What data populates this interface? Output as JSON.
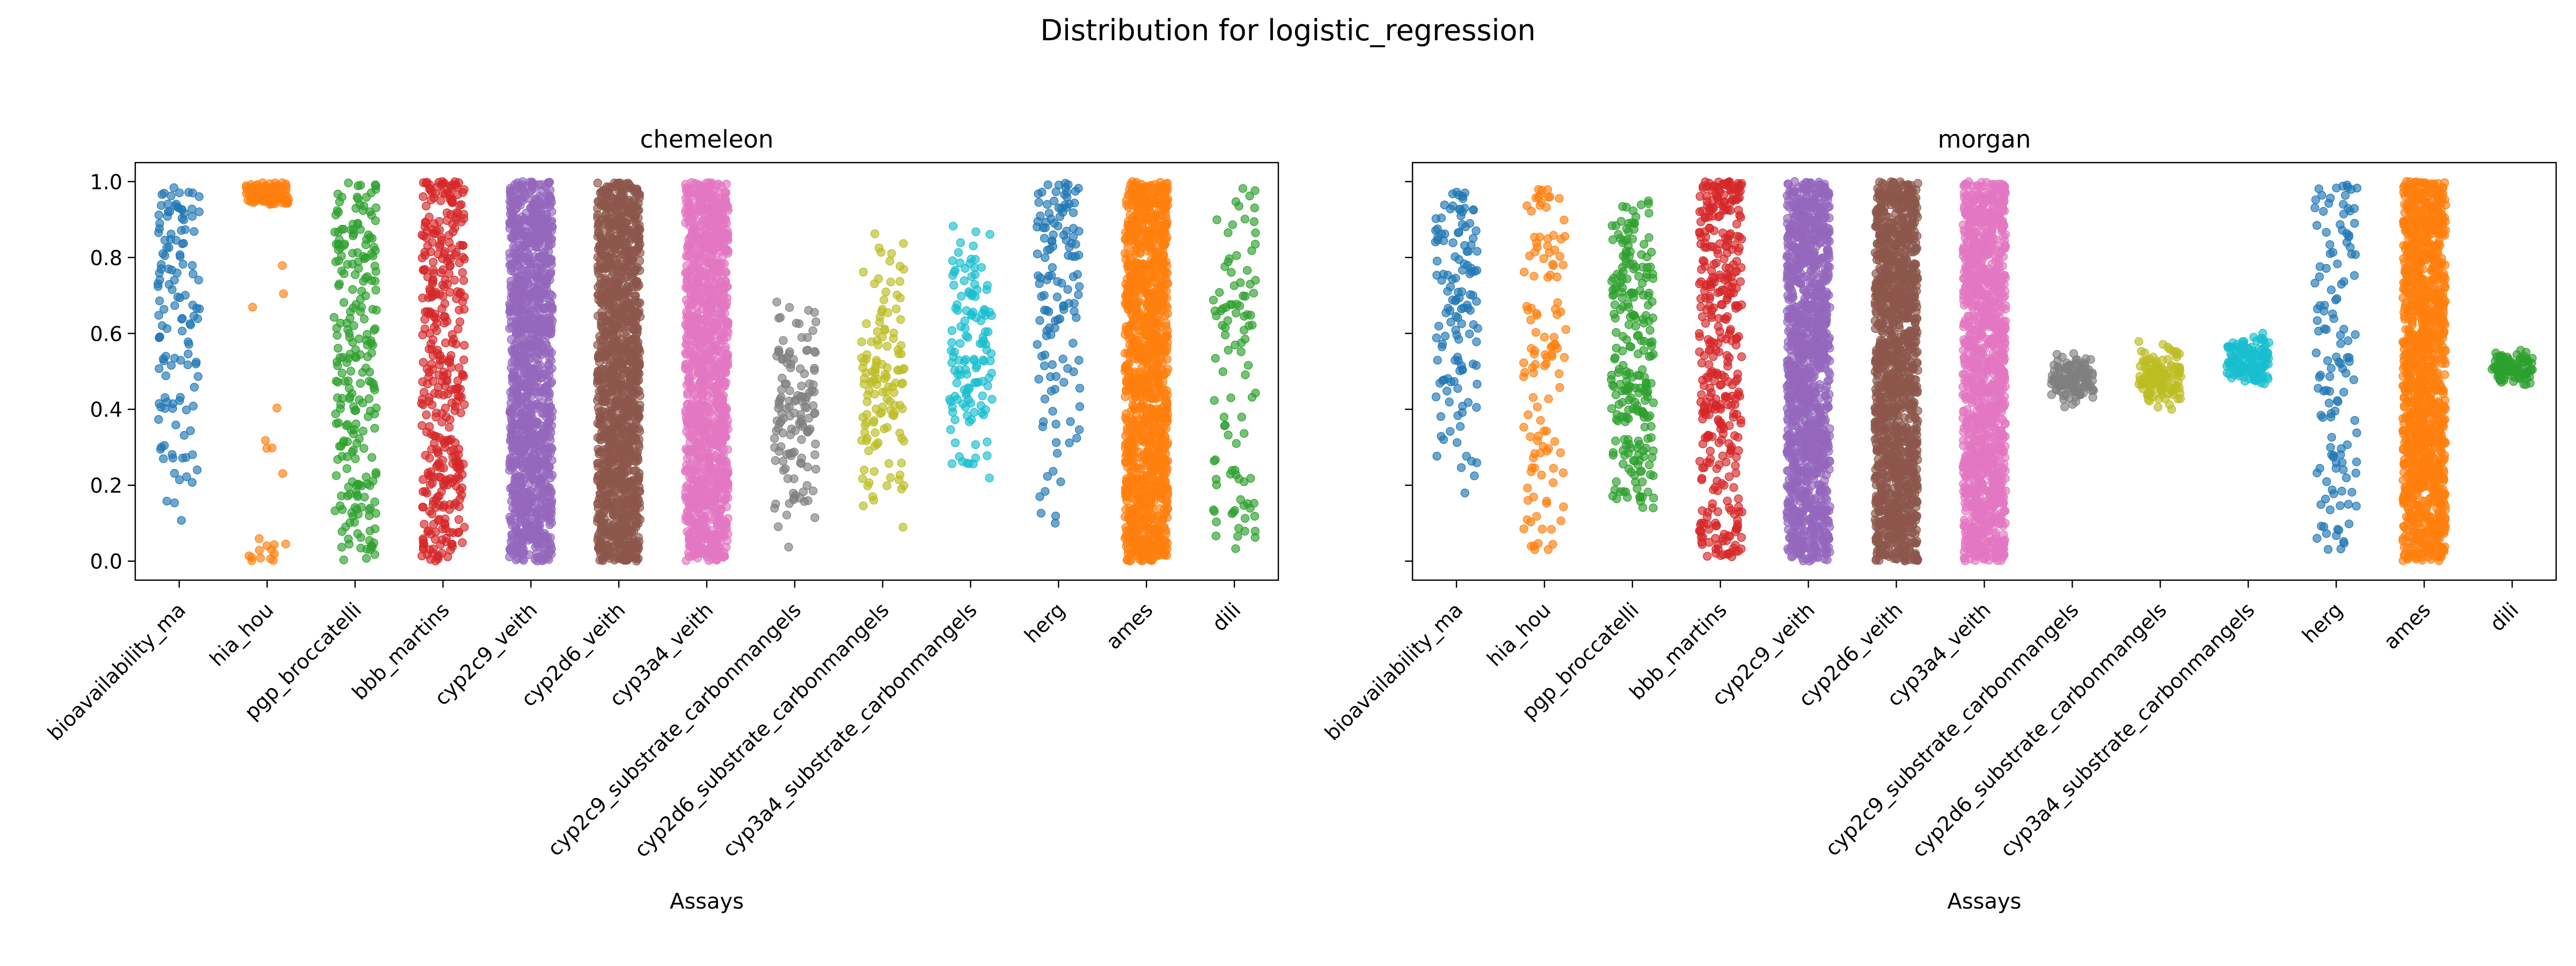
{
  "figure": {
    "suptitle": "Distribution for logistic_regression"
  },
  "chart_data": [
    {
      "type": "scatter",
      "subtype": "strip",
      "title": "chemeleon",
      "xlabel": "Assays",
      "ylabel": "",
      "ylim": [
        -0.05,
        1.05
      ],
      "yticks": [
        "0.0",
        "0.2",
        "0.4",
        "0.6",
        "0.8",
        "1.0"
      ],
      "grid": false,
      "categories": [
        "bioavailability_ma",
        "hia_hou",
        "pgp_broccatelli",
        "bbb_martins",
        "cyp2c9_veith",
        "cyp2d6_veith",
        "cyp3a4_veith",
        "cyp2c9_substrate_carbonmangels",
        "cyp2d6_substrate_carbonmangels",
        "cyp3a4_substrate_carbonmangels",
        "herg",
        "ames",
        "dili"
      ],
      "series": [
        {
          "category": "bioavailability_ma",
          "color": "#1f77b4",
          "n": 130,
          "min": 0.04,
          "max": 0.99,
          "median": 0.68,
          "shape": "uniform-high"
        },
        {
          "category": "hia_hou",
          "color": "#ff7f0e",
          "n": 120,
          "min": 0.0,
          "max": 1.0,
          "median": 0.97,
          "shape": "bimodal-extreme",
          "bias": 0.78
        },
        {
          "category": "pgp_broccatelli",
          "color": "#2ca02c",
          "n": 240,
          "min": 0.0,
          "max": 1.0,
          "median": 0.55,
          "shape": "uniform"
        },
        {
          "category": "bbb_martins",
          "color": "#d62728",
          "n": 380,
          "min": 0.0,
          "max": 1.0,
          "median": 0.9,
          "shape": "top-heavy"
        },
        {
          "category": "cyp2c9_veith",
          "color": "#9467bd",
          "n": 1200,
          "min": 0.0,
          "max": 1.0,
          "median": 0.4,
          "shape": "dense"
        },
        {
          "category": "cyp2d6_veith",
          "color": "#8c564b",
          "n": 1300,
          "min": 0.0,
          "max": 1.0,
          "median": 0.35,
          "shape": "dense"
        },
        {
          "category": "cyp3a4_veith",
          "color": "#e377c2",
          "n": 1250,
          "min": 0.0,
          "max": 1.0,
          "median": 0.5,
          "shape": "dense"
        },
        {
          "category": "cyp2c9_substrate_carbonmangels",
          "color": "#7f7f7f",
          "n": 130,
          "min": 0.0,
          "max": 0.74,
          "median": 0.42,
          "shape": "mid"
        },
        {
          "category": "cyp2d6_substrate_carbonmangels",
          "color": "#bcbd22",
          "n": 130,
          "min": 0.0,
          "max": 0.9,
          "median": 0.45,
          "shape": "mid"
        },
        {
          "category": "cyp3a4_substrate_carbonmangels",
          "color": "#17becf",
          "n": 130,
          "min": 0.18,
          "max": 0.93,
          "median": 0.6,
          "shape": "mid"
        },
        {
          "category": "herg",
          "color": "#1f77b4",
          "n": 130,
          "min": 0.06,
          "max": 1.0,
          "median": 0.7,
          "shape": "uniform-high"
        },
        {
          "category": "ames",
          "color": "#ff7f0e",
          "n": 1300,
          "min": 0.0,
          "max": 1.0,
          "median": 0.55,
          "shape": "dense"
        },
        {
          "category": "dili",
          "color": "#2ca02c",
          "n": 100,
          "min": 0.02,
          "max": 0.99,
          "median": 0.6,
          "shape": "uniform"
        }
      ]
    },
    {
      "type": "scatter",
      "subtype": "strip",
      "title": "morgan",
      "xlabel": "Assays",
      "ylabel": "",
      "ylim": [
        -0.05,
        1.05
      ],
      "yticks": [
        "0.0",
        "0.2",
        "0.4",
        "0.6",
        "0.8",
        "1.0"
      ],
      "grid": false,
      "shared_y": true,
      "categories": [
        "bioavailability_ma",
        "hia_hou",
        "pgp_broccatelli",
        "bbb_martins",
        "cyp2c9_veith",
        "cyp2d6_veith",
        "cyp3a4_veith",
        "cyp2c9_substrate_carbonmangels",
        "cyp2d6_substrate_carbonmangels",
        "cyp3a4_substrate_carbonmangels",
        "herg",
        "ames",
        "dili"
      ],
      "series": [
        {
          "category": "bioavailability_ma",
          "color": "#1f77b4",
          "n": 130,
          "min": 0.08,
          "max": 0.98,
          "median": 0.75,
          "shape": "uniform-high"
        },
        {
          "category": "hia_hou",
          "color": "#ff7f0e",
          "n": 120,
          "min": 0.03,
          "max": 0.98,
          "median": 0.88,
          "shape": "top-heavy"
        },
        {
          "category": "pgp_broccatelli",
          "color": "#2ca02c",
          "n": 240,
          "min": 0.14,
          "max": 0.95,
          "median": 0.5,
          "shape": "uniform"
        },
        {
          "category": "bbb_martins",
          "color": "#d62728",
          "n": 380,
          "min": 0.01,
          "max": 1.0,
          "median": 0.75,
          "shape": "top-heavy"
        },
        {
          "category": "cyp2c9_veith",
          "color": "#9467bd",
          "n": 1200,
          "min": 0.0,
          "max": 1.0,
          "median": 0.45,
          "shape": "dense"
        },
        {
          "category": "cyp2d6_veith",
          "color": "#8c564b",
          "n": 1300,
          "min": 0.0,
          "max": 1.0,
          "median": 0.35,
          "shape": "dense"
        },
        {
          "category": "cyp3a4_veith",
          "color": "#e377c2",
          "n": 1250,
          "min": 0.0,
          "max": 1.0,
          "median": 0.5,
          "shape": "dense"
        },
        {
          "category": "cyp2c9_substrate_carbonmangels",
          "color": "#7f7f7f",
          "n": 130,
          "min": 0.39,
          "max": 0.57,
          "median": 0.47,
          "shape": "narrow"
        },
        {
          "category": "cyp2d6_substrate_carbonmangels",
          "color": "#bcbd22",
          "n": 130,
          "min": 0.37,
          "max": 0.6,
          "median": 0.47,
          "shape": "narrow"
        },
        {
          "category": "cyp3a4_substrate_carbonmangels",
          "color": "#17becf",
          "n": 130,
          "min": 0.44,
          "max": 0.62,
          "median": 0.51,
          "shape": "narrow"
        },
        {
          "category": "herg",
          "color": "#1f77b4",
          "n": 130,
          "min": 0.03,
          "max": 1.0,
          "median": 0.78,
          "shape": "top-heavy"
        },
        {
          "category": "ames",
          "color": "#ff7f0e",
          "n": 1300,
          "min": 0.0,
          "max": 1.0,
          "median": 0.5,
          "shape": "dense"
        },
        {
          "category": "dili",
          "color": "#2ca02c",
          "n": 100,
          "min": 0.45,
          "max": 0.57,
          "median": 0.51,
          "shape": "narrow"
        }
      ]
    }
  ]
}
